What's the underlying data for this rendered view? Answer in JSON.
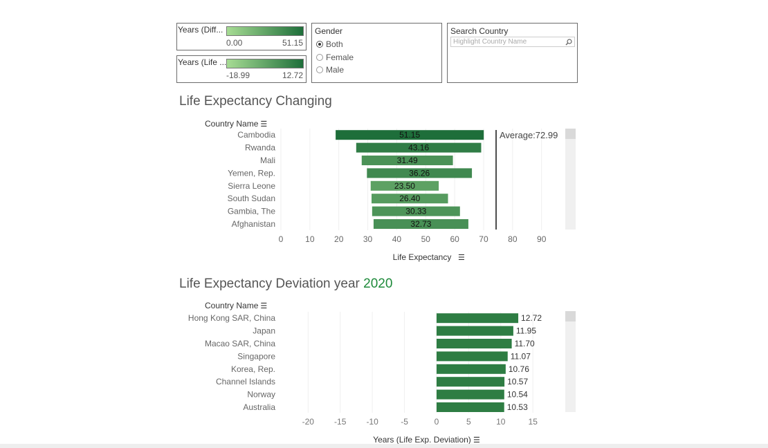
{
  "legends": {
    "diff": {
      "title": "Years (Diff...",
      "min": "0.00",
      "max": "51.15"
    },
    "life": {
      "title": "Years (Life ...",
      "min": "-18.99",
      "max": "12.72"
    }
  },
  "gender": {
    "title": "Gender",
    "options": [
      "Both",
      "Female",
      "Male"
    ],
    "selected": "Both"
  },
  "search": {
    "title": "Search Country",
    "placeholder": "Highlight Country Name"
  },
  "chart1": {
    "title": "Life Expectancy Changing",
    "row_header": "Country Name",
    "xlabel": "Life Expectancy",
    "average_label": "Average:72.99"
  },
  "chart2": {
    "title_prefix": "Life Expectancy Deviation year ",
    "year": "2020",
    "row_header": "Country Name",
    "xlabel": "Years (Life Exp. Deviation)"
  },
  "chart_data": [
    {
      "type": "bar",
      "subtype": "range",
      "title": "Life Expectancy Changing",
      "xlabel": "Life Expectancy",
      "xlim": [
        0,
        97
      ],
      "xticks": [
        0,
        10,
        20,
        30,
        40,
        50,
        60,
        70,
        80,
        90
      ],
      "average": 72.99,
      "categories": [
        "Cambodia",
        "Rwanda",
        "Mali",
        "Yemen, Rep.",
        "Sierra Leone",
        "South Sudan",
        "Gambia, The",
        "Afghanistan"
      ],
      "start": [
        18.9,
        26.0,
        27.9,
        29.7,
        31.0,
        31.3,
        31.5,
        32.0
      ],
      "end": [
        70.05,
        69.16,
        59.39,
        65.96,
        54.5,
        57.7,
        61.83,
        64.73
      ],
      "values": [
        51.15,
        43.16,
        31.49,
        36.26,
        23.5,
        26.4,
        30.33,
        32.73
      ],
      "labels": [
        "51.15",
        "43.16",
        "31.49",
        "36.26",
        "23.50",
        "26.40",
        "30.33",
        "32.73"
      ]
    },
    {
      "type": "bar",
      "title": "Life Expectancy Deviation year 2020",
      "xlabel": "Years (Life Exp. Deviation)",
      "xlim": [
        -21,
        19.5
      ],
      "xticks": [
        -20,
        -15,
        -10,
        -5,
        0,
        5,
        10,
        15
      ],
      "categories": [
        "Hong Kong SAR, China",
        "Japan",
        "Macao SAR, China",
        "Singapore",
        "Korea, Rep.",
        "Channel Islands",
        "Norway",
        "Australia"
      ],
      "values": [
        12.72,
        11.95,
        11.7,
        11.07,
        10.76,
        10.57,
        10.54,
        10.53
      ],
      "labels": [
        "12.72",
        "11.95",
        "11.70",
        "11.07",
        "10.76",
        "10.57",
        "10.54",
        "10.53"
      ]
    }
  ],
  "colors": {
    "dark_green": "#1e6e3a",
    "light_green": "#a7dc94",
    "mid_green": "#2e7d43",
    "year_green": "#1e8a3a"
  }
}
